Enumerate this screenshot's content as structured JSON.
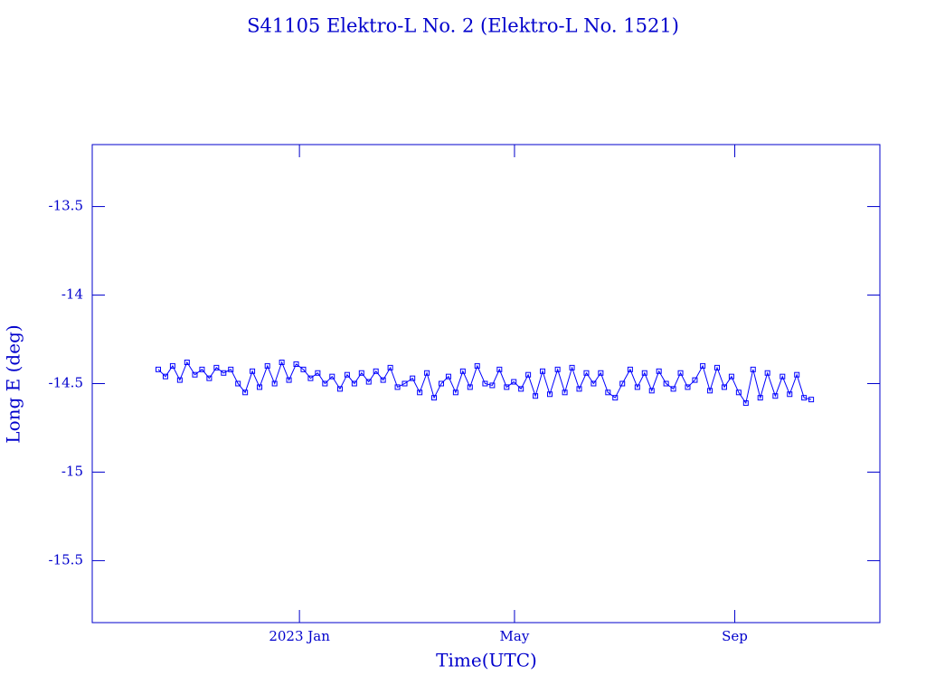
{
  "chart_data": {
    "type": "line",
    "title": "S41105 Elektro-L No. 2  (Elektro-L No. 1521)",
    "xlabel": "Time(UTC)",
    "ylabel": "Long E (deg)",
    "color": "#0000ff",
    "xlim": [
      2022.683,
      2023.888
    ],
    "xticks": [
      {
        "value": 2023.0,
        "label": "2023 Jan"
      },
      {
        "value": 2023.329,
        "label": "May"
      },
      {
        "value": 2023.666,
        "label": "Sep"
      }
    ],
    "ylim": [
      -15.85,
      -13.15
    ],
    "yticks": [
      -13.5,
      -14,
      -14.5,
      -15,
      -15.5
    ],
    "x": [
      2022.784,
      2022.795,
      2022.806,
      2022.817,
      2022.828,
      2022.84,
      2022.851,
      2022.862,
      2022.873,
      2022.884,
      2022.895,
      2022.906,
      2022.917,
      2022.928,
      2022.939,
      2022.951,
      2022.962,
      2022.973,
      2022.984,
      2022.995,
      2023.006,
      2023.017,
      2023.028,
      2023.039,
      2023.05,
      2023.062,
      2023.073,
      2023.084,
      2023.095,
      2023.106,
      2023.117,
      2023.128,
      2023.139,
      2023.15,
      2023.161,
      2023.173,
      2023.184,
      2023.195,
      2023.206,
      2023.217,
      2023.228,
      2023.239,
      2023.25,
      2023.261,
      2023.272,
      2023.284,
      2023.295,
      2023.306,
      2023.317,
      2023.328,
      2023.339,
      2023.35,
      2023.361,
      2023.372,
      2023.383,
      2023.395,
      2023.406,
      2023.417,
      2023.428,
      2023.439,
      2023.45,
      2023.461,
      2023.472,
      2023.483,
      2023.494,
      2023.506,
      2023.517,
      2023.528,
      2023.539,
      2023.55,
      2023.561,
      2023.572,
      2023.583,
      2023.594,
      2023.605,
      2023.617,
      2023.628,
      2023.639,
      2023.65,
      2023.661,
      2023.672,
      2023.683,
      2023.694,
      2023.705,
      2023.716,
      2023.728,
      2023.739,
      2023.75,
      2023.761,
      2023.772,
      2023.783
    ],
    "series": [
      {
        "name": "Long E",
        "values": [
          -14.42,
          -14.46,
          -14.4,
          -14.48,
          -14.38,
          -14.45,
          -14.42,
          -14.47,
          -14.41,
          -14.44,
          -14.42,
          -14.5,
          -14.55,
          -14.43,
          -14.52,
          -14.4,
          -14.5,
          -14.38,
          -14.48,
          -14.39,
          -14.42,
          -14.47,
          -14.44,
          -14.5,
          -14.46,
          -14.53,
          -14.45,
          -14.5,
          -14.44,
          -14.49,
          -14.43,
          -14.48,
          -14.41,
          -14.52,
          -14.5,
          -14.47,
          -14.55,
          -14.44,
          -14.58,
          -14.5,
          -14.46,
          -14.55,
          -14.43,
          -14.52,
          -14.4,
          -14.5,
          -14.51,
          -14.42,
          -14.52,
          -14.49,
          -14.53,
          -14.45,
          -14.57,
          -14.43,
          -14.56,
          -14.42,
          -14.55,
          -14.41,
          -14.53,
          -14.44,
          -14.5,
          -14.44,
          -14.55,
          -14.58,
          -14.5,
          -14.42,
          -14.52,
          -14.44,
          -14.54,
          -14.43,
          -14.5,
          -14.53,
          -14.44,
          -14.52,
          -14.48,
          -14.4,
          -14.54,
          -14.41,
          -14.52,
          -14.46,
          -14.55,
          -14.61,
          -14.42,
          -14.58,
          -14.44,
          -14.57,
          -14.46,
          -14.56,
          -14.45,
          -14.58,
          -14.59
        ]
      }
    ]
  }
}
